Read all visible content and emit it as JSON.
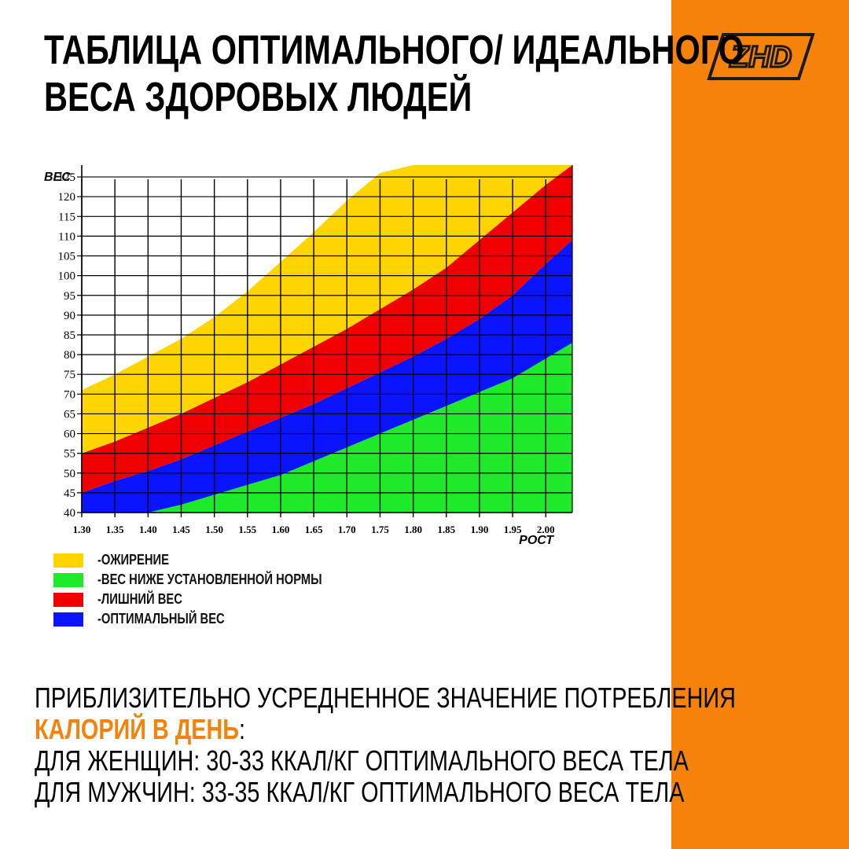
{
  "page": {
    "title_lines": [
      "ТАБЛИЦА ОПТИМАЛЬНОГО/ ИДЕАЛЬНОГО",
      "ВЕСА ЗДОРОВЫХ ЛЮДЕЙ"
    ],
    "logo_text": "ZHD",
    "accent_color": "#F5830B",
    "bottom": {
      "line1": "ПРИБЛИЗИТЕЛЬНО УСРЕДНЕННОЕ ЗНАЧЕНИЕ ПОТРЕБЛЕНИЯ",
      "line2_highlight": "КАЛОРИЙ В ДЕНЬ",
      "line2_rest": ":",
      "line3": "ДЛЯ ЖЕНЩИН: 30-33  ККАЛ/КГ ОПТИМАЛЬНОГО ВЕСА ТЕЛА",
      "line4": "ДЛЯ МУЖЧИН: 33-35 ККАЛ/КГ ОПТИМАЛЬНОГО ВЕСА ТЕЛА"
    }
  },
  "chart_data": {
    "type": "area",
    "ylabel": "ВЕС",
    "xlabel": "РОСТ",
    "x_ticks": [
      "1.30",
      "1.35",
      "1.40",
      "1.45",
      "1.50",
      "1.55",
      "1.60",
      "1.65",
      "1.70",
      "1.75",
      "1.80",
      "1.85",
      "1.90",
      "1.95",
      "2.00"
    ],
    "y_ticks": [
      "40",
      "45",
      "50",
      "55",
      "60",
      "65",
      "70",
      "75",
      "80",
      "85",
      "90",
      "95",
      "100",
      "105",
      "110",
      "115",
      "120",
      "125"
    ],
    "xlim": [
      1.3,
      2.04
    ],
    "ylim": [
      40,
      128
    ],
    "grid": true,
    "x": [
      1.3,
      1.35,
      1.4,
      1.45,
      1.5,
      1.55,
      1.6,
      1.65,
      1.7,
      1.75,
      1.8,
      1.85,
      1.9,
      1.95,
      2.0,
      2.04
    ],
    "boundaries": {
      "green_top": [
        37,
        38.5,
        40,
        42,
        44.5,
        47,
        49.5,
        53,
        56.5,
        60,
        63.5,
        67,
        70.5,
        74,
        79,
        83
      ],
      "blue_top": [
        45,
        48,
        50.5,
        53.5,
        57,
        60.5,
        64,
        67.5,
        71.5,
        75.5,
        79.5,
        84,
        89,
        95,
        103,
        109
      ],
      "red_top": [
        55,
        58,
        61.5,
        65,
        69,
        73,
        77.5,
        82,
        86.5,
        91.5,
        96.5,
        102,
        109,
        116,
        123,
        128
      ],
      "yellow_top": [
        71,
        75,
        79.5,
        84,
        89.5,
        96,
        103.5,
        111,
        119,
        126,
        128,
        128,
        128,
        128,
        128,
        128
      ]
    },
    "legend": [
      {
        "color": "#FFD500",
        "label": "-ОЖИРЕНИЕ"
      },
      {
        "color": "#1FEA2A",
        "label": "-ВЕС НИЖЕ УСТАНОВЛЕННОЙ НОРМЫ"
      },
      {
        "color": "#F00000",
        "label": "-ЛИШНИЙ ВЕС"
      },
      {
        "color": "#0A14FF",
        "label": "-ОПТИМАЛЬНЫЙ ВЕС"
      }
    ],
    "legend_position": "bottom-left"
  }
}
